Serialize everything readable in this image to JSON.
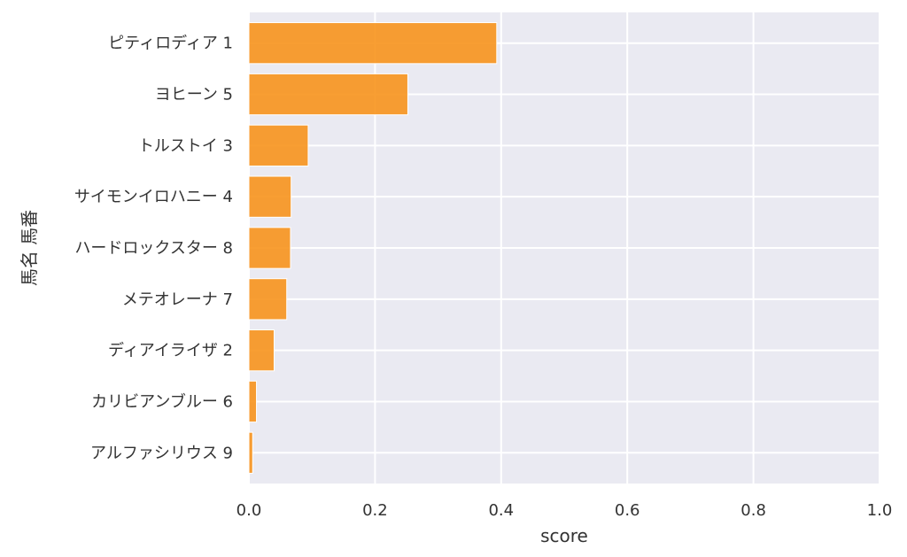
{
  "chart_data": {
    "type": "bar",
    "orientation": "horizontal",
    "categories": [
      "ピティロディア 1",
      "ヨヒーン 5",
      "トルストイ 3",
      "サイモンイロハニー 4",
      "ハードロックスター 8",
      "メテオレーナ 7",
      "ディアイライザ 2",
      "カリビアンブルー 6",
      "アルファシリウス 9"
    ],
    "values": [
      0.393,
      0.252,
      0.094,
      0.067,
      0.066,
      0.06,
      0.04,
      0.012,
      0.006
    ],
    "xlabel": "score",
    "ylabel": "馬名 馬番",
    "xlim": [
      0,
      1.0
    ],
    "xticks": [
      "0.0",
      "0.2",
      "0.4",
      "0.6",
      "0.8",
      "1.0"
    ],
    "grid": true,
    "colors": {
      "bar": "#F7941D",
      "bar_edge": "#ffffff",
      "background": "#EAEAF2",
      "grid": "#ffffff"
    }
  }
}
